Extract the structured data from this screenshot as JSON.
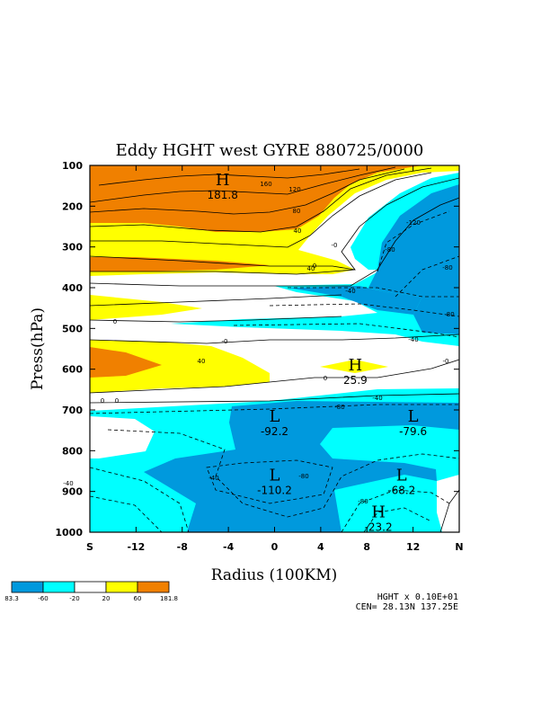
{
  "chart_data": {
    "type": "contour",
    "title": "Eddy HGHT west GYRE 880725/0000",
    "ylabel": "Press(hPa)",
    "xlabel": "Radius (100KM)",
    "y_ticks": [
      "100",
      "200",
      "300",
      "400",
      "500",
      "600",
      "700",
      "800",
      "900",
      "1000"
    ],
    "y_values": [
      100,
      200,
      300,
      400,
      500,
      600,
      700,
      800,
      900,
      1000
    ],
    "ylim": [
      100,
      1000
    ],
    "x_ticks": [
      "S",
      "-12",
      "-8",
      "-4",
      "0",
      "4",
      "8",
      "12",
      "N"
    ],
    "x_values": [
      -16,
      -12,
      -8,
      -4,
      0,
      4,
      8,
      12,
      16
    ],
    "xlim": [
      -16,
      16
    ],
    "legend": {
      "labels": [
        "83.3",
        "-60",
        "-20",
        "20",
        "60",
        "181.8"
      ],
      "colors": [
        "#0099dd",
        "#00ffff",
        "#ffffff",
        "#ffff00",
        "#f08000"
      ]
    },
    "extrema": [
      {
        "type": "H",
        "value": "181.8",
        "x": -4.5,
        "y": 135
      },
      {
        "type": "H",
        "value": "25.9",
        "x": 7,
        "y": 590
      },
      {
        "type": "L",
        "value": "-92.2",
        "x": 0,
        "y": 715
      },
      {
        "type": "L",
        "value": "-79.6",
        "x": 12,
        "y": 715
      },
      {
        "type": "L",
        "value": "-110.2",
        "x": 0,
        "y": 860
      },
      {
        "type": "L",
        "value": "-68.2",
        "x": 11,
        "y": 860
      },
      {
        "type": "H",
        "value": "-23.2",
        "x": 9,
        "y": 950
      }
    ],
    "contour_labels": [
      "160",
      "120",
      "80",
      "40",
      "0",
      "40",
      "-0",
      "-80",
      "-120",
      "-80",
      "-40",
      "-80",
      "0",
      "-0",
      "0",
      "-40",
      "-0",
      "40",
      "0",
      "0",
      "-80",
      "-40",
      "-80",
      "-40",
      "-40",
      "-80"
    ],
    "footer": {
      "scale": "HGHT x   0.10E+01",
      "center": "CEN=  28.13N   137.25E"
    }
  },
  "colors": {
    "dark_blue": "#0099dd",
    "cyan": "#00ffff",
    "white": "#ffffff",
    "yellow": "#ffff00",
    "orange": "#f08000"
  }
}
